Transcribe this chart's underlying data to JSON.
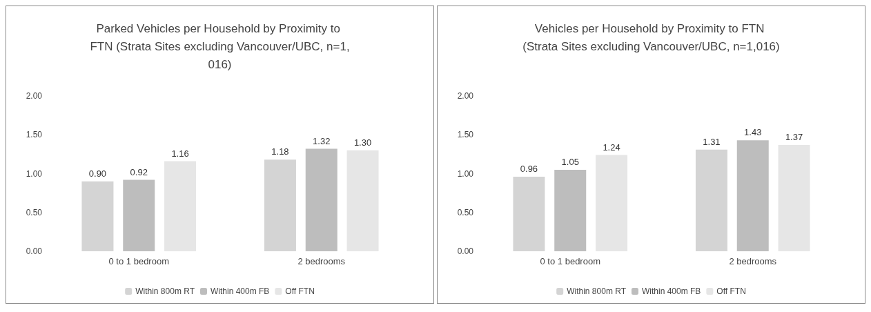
{
  "chart_data": [
    {
      "type": "bar",
      "title": "Parked Vehicles per Household by Proximity to FTN (Strata Sites excluding Vancouver/UBC, n=1,016)",
      "categories": [
        "0 to 1 bedroom",
        "2 bedrooms"
      ],
      "series": [
        {
          "name": "Within 800m RT",
          "color": "#d4d4d4",
          "values": [
            0.9,
            1.18
          ],
          "value_labels": [
            "0.90",
            "1.18"
          ]
        },
        {
          "name": "Within 400m FB",
          "color": "#bdbdbd",
          "values": [
            0.92,
            1.32
          ],
          "value_labels": [
            "0.92",
            "1.32"
          ]
        },
        {
          "name": "Off FTN",
          "color": "#e6e6e6",
          "values": [
            1.16,
            1.3
          ],
          "value_labels": [
            "1.16",
            "1.30"
          ]
        }
      ],
      "ylim": [
        0,
        2
      ],
      "yticks": [
        {
          "value": 0,
          "label": "0.00"
        },
        {
          "value": 0.5,
          "label": "0.50"
        },
        {
          "value": 1,
          "label": "1.00"
        },
        {
          "value": 1.5,
          "label": "1.50"
        },
        {
          "value": 2,
          "label": "2.00"
        }
      ],
      "legend": "bottom",
      "grid": false
    },
    {
      "type": "bar",
      "title": "Vehicles per Household by Proximity to FTN (Strata Sites excluding Vancouver/UBC, n=1,016)",
      "categories": [
        "0 to 1 bedroom",
        "2 bedrooms"
      ],
      "series": [
        {
          "name": "Within 800m RT",
          "color": "#d4d4d4",
          "values": [
            0.96,
            1.31
          ],
          "value_labels": [
            "0.96",
            "1.31"
          ]
        },
        {
          "name": "Within 400m FB",
          "color": "#bdbdbd",
          "values": [
            1.05,
            1.43
          ],
          "value_labels": [
            "1.05",
            "1.43"
          ]
        },
        {
          "name": "Off FTN",
          "color": "#e6e6e6",
          "values": [
            1.24,
            1.37
          ],
          "value_labels": [
            "1.24",
            "1.37"
          ]
        }
      ],
      "ylim": [
        0,
        2
      ],
      "yticks": [
        {
          "value": 0,
          "label": "0.00"
        },
        {
          "value": 0.5,
          "label": "0.50"
        },
        {
          "value": 1,
          "label": "1.00"
        },
        {
          "value": 1.5,
          "label": "1.50"
        },
        {
          "value": 2,
          "label": "2.00"
        }
      ],
      "legend": "bottom",
      "grid": false
    }
  ]
}
